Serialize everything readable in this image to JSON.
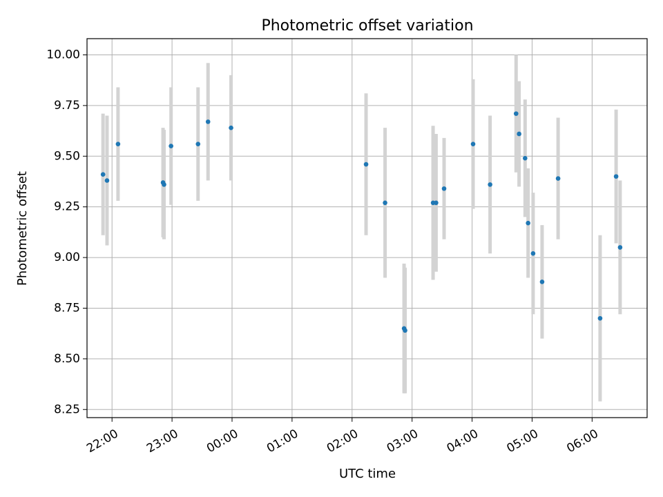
{
  "chart_data": {
    "type": "scatter",
    "title": "Photometric offset variation",
    "xlabel": "UTC time",
    "ylabel": "Photometric offset",
    "xlim": [
      "21:35",
      "06:55"
    ],
    "ylim": [
      8.21,
      10.08
    ],
    "grid": true,
    "x_ticks": [
      "22:00",
      "23:00",
      "00:00",
      "01:00",
      "02:00",
      "03:00",
      "04:00",
      "05:00",
      "06:00"
    ],
    "y_ticks": [
      "8.25",
      "8.50",
      "8.75",
      "9.00",
      "9.25",
      "9.50",
      "9.75",
      "10.00"
    ],
    "colors": {
      "point": "#1f77b4",
      "errorbar": "#d3d3d3",
      "grid": "#b0b0b0"
    },
    "points": [
      {
        "x": "21:51",
        "y": 9.41,
        "err": 0.3
      },
      {
        "x": "21:55",
        "y": 9.38,
        "err": 0.32
      },
      {
        "x": "22:06",
        "y": 9.56,
        "err": 0.28
      },
      {
        "x": "22:51",
        "y": 9.37,
        "err": 0.27
      },
      {
        "x": "22:52",
        "y": 9.36,
        "err": 0.27
      },
      {
        "x": "22:59",
        "y": 9.55,
        "err": 0.29
      },
      {
        "x": "23:26",
        "y": 9.56,
        "err": 0.28
      },
      {
        "x": "23:36",
        "y": 9.67,
        "err": 0.29
      },
      {
        "x": "23:59",
        "y": 9.64,
        "err": 0.26
      },
      {
        "x": "02:14",
        "y": 9.46,
        "err": 0.35
      },
      {
        "x": "02:33",
        "y": 9.27,
        "err": 0.37
      },
      {
        "x": "02:52",
        "y": 8.65,
        "err": 0.32
      },
      {
        "x": "02:53",
        "y": 8.64,
        "err": 0.31
      },
      {
        "x": "03:21",
        "y": 9.27,
        "err": 0.38
      },
      {
        "x": "03:24",
        "y": 9.27,
        "err": 0.34
      },
      {
        "x": "03:32",
        "y": 9.34,
        "err": 0.25
      },
      {
        "x": "04:01",
        "y": 9.56,
        "err": 0.32
      },
      {
        "x": "04:18",
        "y": 9.36,
        "err": 0.34
      },
      {
        "x": "04:44",
        "y": 9.71,
        "err": 0.29
      },
      {
        "x": "04:47",
        "y": 9.61,
        "err": 0.26
      },
      {
        "x": "04:53",
        "y": 9.49,
        "err": 0.29
      },
      {
        "x": "04:56",
        "y": 9.17,
        "err": 0.27
      },
      {
        "x": "05:01",
        "y": 9.02,
        "err": 0.3
      },
      {
        "x": "05:10",
        "y": 8.88,
        "err": 0.28
      },
      {
        "x": "05:26",
        "y": 9.39,
        "err": 0.3
      },
      {
        "x": "06:08",
        "y": 8.7,
        "err": 0.41
      },
      {
        "x": "06:24",
        "y": 9.4,
        "err": 0.33
      },
      {
        "x": "06:28",
        "y": 9.05,
        "err": 0.33
      }
    ]
  }
}
